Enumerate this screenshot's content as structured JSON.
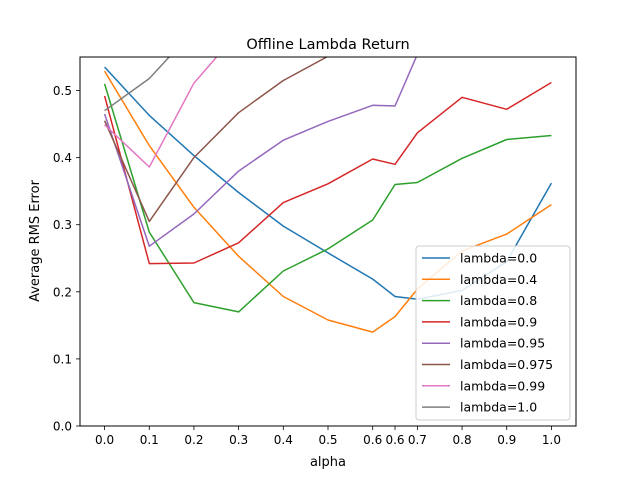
{
  "chart_data": {
    "type": "line",
    "title": "Offline Lambda Return",
    "xlabel": "alpha",
    "ylabel": "Average RMS Error",
    "x": [
      0.0,
      0.1,
      0.2,
      0.3,
      0.4,
      0.5,
      0.6,
      0.65,
      0.7,
      0.8,
      0.9,
      1.0
    ],
    "x_tick_labels": [
      "0.0",
      "0.1",
      "0.2",
      "0.3",
      "0.4",
      "0.5",
      "0.6",
      "0.6",
      "0.7",
      "0.8",
      "0.9",
      "1.0"
    ],
    "ylim": [
      0,
      0.55
    ],
    "y_ticks": [
      0.0,
      0.1,
      0.2,
      0.3,
      0.4,
      0.5
    ],
    "y_tick_labels": [
      "0.0",
      "0.1",
      "0.2",
      "0.3",
      "0.4",
      "0.5"
    ],
    "grid": false,
    "legend_position": "lower-right",
    "series": [
      {
        "name": "lambda=0.0",
        "color": "#1f77b4",
        "values": [
          0.535,
          0.463,
          0.403,
          0.348,
          0.298,
          0.258,
          0.219,
          0.193,
          0.189,
          0.202,
          0.245,
          0.362
        ]
      },
      {
        "name": "lambda=0.4",
        "color": "#ff7f0e",
        "values": [
          0.529,
          0.418,
          0.326,
          0.253,
          0.193,
          0.158,
          0.14,
          0.163,
          0.204,
          0.261,
          0.286,
          0.33
        ]
      },
      {
        "name": "lambda=0.8",
        "color": "#2ca02c",
        "values": [
          0.51,
          0.289,
          0.184,
          0.17,
          0.231,
          0.264,
          0.307,
          0.36,
          0.363,
          0.399,
          0.427,
          0.433
        ]
      },
      {
        "name": "lambda=0.9",
        "color": "#d62728",
        "values": [
          0.492,
          0.242,
          0.243,
          0.273,
          0.333,
          0.361,
          0.398,
          0.39,
          0.437,
          0.49,
          0.472,
          0.512
        ]
      },
      {
        "name": "lambda=0.95",
        "color": "#9467bd",
        "values": [
          0.465,
          0.268,
          0.316,
          0.38,
          0.426,
          0.454,
          0.478,
          0.477,
          0.554,
          0.6,
          0.6,
          0.6
        ]
      },
      {
        "name": "lambda=0.975",
        "color": "#8c564b",
        "values": [
          0.455,
          0.305,
          0.4,
          0.467,
          0.515,
          0.551,
          0.6,
          0.6,
          0.6,
          0.6,
          0.6,
          0.6
        ]
      },
      {
        "name": "lambda=0.99",
        "color": "#e377c2",
        "values": [
          0.449,
          0.386,
          0.511,
          0.588,
          0.6,
          0.6,
          0.6,
          0.6,
          0.6,
          0.6,
          0.6,
          0.6
        ]
      },
      {
        "name": "lambda=1.0",
        "color": "#7f7f7f",
        "values": [
          0.47,
          0.518,
          0.59,
          0.6,
          0.6,
          0.6,
          0.6,
          0.6,
          0.6,
          0.6,
          0.6,
          0.6
        ]
      }
    ]
  }
}
